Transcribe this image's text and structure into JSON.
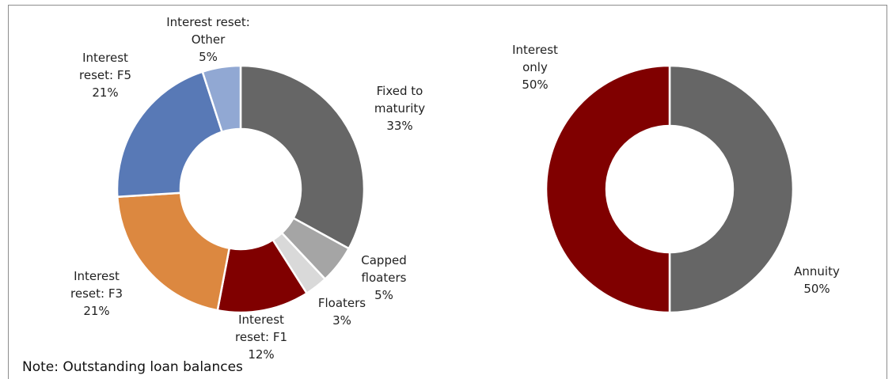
{
  "chart_data": [
    {
      "type": "donut",
      "categories": [
        "Fixed to maturity",
        "Capped floaters",
        "Floaters",
        "Interest reset: F1",
        "Interest reset: F3",
        "Interest reset: F5",
        "Interest reset: Other"
      ],
      "values": [
        33,
        5,
        3,
        12,
        21,
        21,
        5
      ],
      "value_labels": [
        "33%",
        "5%",
        "3%",
        "12%",
        "21%",
        "21%",
        "5%"
      ],
      "colors": [
        "#666666",
        "#a5a5a5",
        "#d9d9d9",
        "#800000",
        "#dc8840",
        "#5879b6",
        "#91a8d3"
      ]
    },
    {
      "type": "donut",
      "categories": [
        "Annuity",
        "Interest only"
      ],
      "values": [
        50,
        50
      ],
      "value_labels": [
        "50%",
        "50%"
      ],
      "colors": [
        "#666666",
        "#800000"
      ]
    }
  ],
  "note": "Note: Outstanding loan balances"
}
